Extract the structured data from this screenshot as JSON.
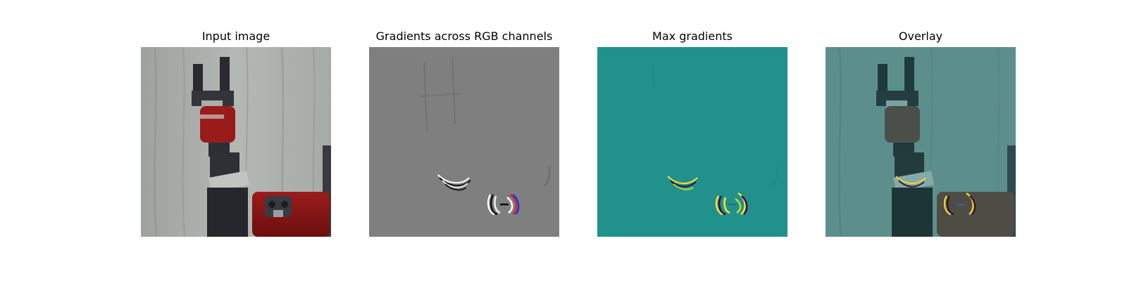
{
  "figure": {
    "panels": [
      {
        "title": "Input image"
      },
      {
        "title": "Gradients across RGB channels"
      },
      {
        "title": "Max gradients"
      },
      {
        "title": "Overlay"
      }
    ]
  }
}
